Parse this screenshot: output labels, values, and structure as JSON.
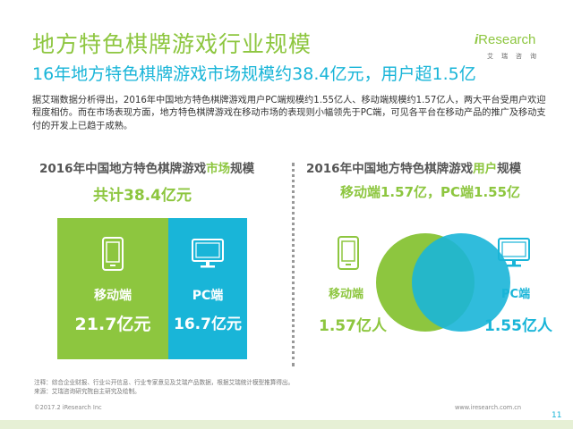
{
  "header": {
    "title": "地方特色棋牌游戏行业规模",
    "subtitle": "16年地方特色棋牌游戏市场规模约38.4亿元，用户超1.5亿"
  },
  "logo": {
    "brand_i": "i",
    "brand_rest": "Research",
    "sub": "艾瑞咨询"
  },
  "intro": "据艾瑞数据分析得出，2016年中国地方特色棋牌游戏用户PC端规模约1.55亿人、移动端规模约1.57亿人，两大平台受用户欢迎程度相仿。而在市场表现方面，地方特色棋牌游戏在移动市场的表现则小幅领先于PC端，可见各平台在移动产品的推广及移动支付的开发上已趋于成熟。",
  "market": {
    "heading_pre": "2016年中国地方特色棋牌游戏",
    "heading_hl": "市场",
    "heading_post": "规模",
    "total": "共计38.4亿元",
    "mobile_label": "移动端",
    "mobile_value": "21.7亿元",
    "pc_label": "PC端",
    "pc_value": "16.7亿元"
  },
  "users": {
    "heading_pre": "2016年中国地方特色棋牌游戏",
    "heading_hl": "用户",
    "heading_post": "规模",
    "summary": "移动端1.57亿，PC端1.55亿",
    "mobile_label": "移动端",
    "mobile_value": "1.57亿人",
    "pc_label": "PC端",
    "pc_value": "1.55亿人"
  },
  "footer": {
    "note_line1": "注释：综合企业财报、行业公开信息、行业专家意见及艾瑞产品数据，根据艾瑞统计模型推算得出。",
    "note_line2": "来源：艾瑞咨询研究院自主研究及绘制。",
    "copyright": "©2017.2 iResearch Inc",
    "site": "www.iresearch.com.cn",
    "page": "11"
  },
  "colors": {
    "green": "#8dc63f",
    "blue": "#19b5d8"
  },
  "icons": [
    "mobile-phone-icon",
    "pc-monitor-icon"
  ]
}
